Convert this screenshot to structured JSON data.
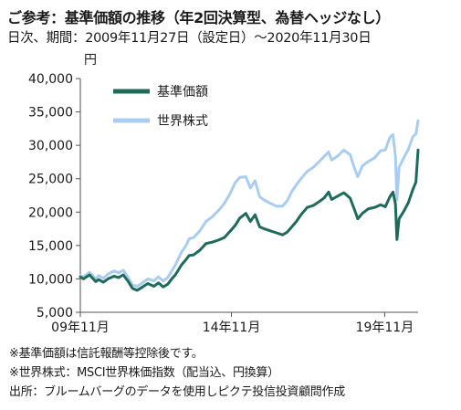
{
  "title": "ご参考：基準価額の推移（年2回決算型、為替ヘッジなし）",
  "subtitle": "日次、期間：2009年11月27日（設定日）～2020年11月30日",
  "notes": [
    "※基準価額は信託報酬等控除後です。",
    "※世界株式：MSCI世界株価指数（配当込、円換算）",
    "出所：ブルームバーグのデータを使用しピクテ投信投資顧問作成"
  ],
  "chart_data": {
    "type": "line",
    "yunit": "円",
    "ylim": [
      5000,
      40000
    ],
    "yticks": [
      "5,000",
      "10,000",
      "15,000",
      "20,000",
      "25,000",
      "30,000",
      "35,000",
      "40,000"
    ],
    "xlim": [
      2009.9,
      2020.92
    ],
    "xticks": [
      {
        "x": 2009.83,
        "label": "09年11月"
      },
      {
        "x": 2014.83,
        "label": "14年11月"
      },
      {
        "x": 2019.83,
        "label": "19年11月"
      }
    ],
    "grid": false,
    "legend": "top-left",
    "series": [
      {
        "name": "基準価額",
        "color": "#1e6b5c",
        "x": [
          2009.9,
          2010.0,
          2010.2,
          2010.4,
          2010.5,
          2010.65,
          2010.8,
          2011.0,
          2011.15,
          2011.3,
          2011.45,
          2011.6,
          2011.75,
          2011.9,
          2012.1,
          2012.3,
          2012.45,
          2012.6,
          2012.75,
          2012.9,
          2013.0,
          2013.2,
          2013.35,
          2013.45,
          2013.6,
          2013.8,
          2014.0,
          2014.2,
          2014.4,
          2014.6,
          2014.8,
          2014.95,
          2015.1,
          2015.3,
          2015.45,
          2015.6,
          2015.75,
          2015.9,
          2016.1,
          2016.3,
          2016.5,
          2016.65,
          2016.8,
          2016.95,
          2017.1,
          2017.3,
          2017.5,
          2017.7,
          2017.85,
          2018.0,
          2018.1,
          2018.3,
          2018.5,
          2018.7,
          2018.85,
          2018.95,
          2019.1,
          2019.3,
          2019.5,
          2019.7,
          2019.85,
          2020.0,
          2020.1,
          2020.18,
          2020.23,
          2020.3,
          2020.45,
          2020.6,
          2020.75,
          2020.85,
          2020.92
        ],
        "values": [
          10300,
          10000,
          10600,
          9600,
          9900,
          9500,
          10000,
          10400,
          10200,
          10600,
          9700,
          8600,
          8300,
          8700,
          9300,
          8900,
          9400,
          8800,
          9200,
          10100,
          10600,
          12100,
          12900,
          13500,
          13600,
          14300,
          15300,
          15500,
          15800,
          16200,
          17200,
          18000,
          19100,
          19800,
          18600,
          19600,
          17800,
          17500,
          17200,
          16900,
          16600,
          17000,
          17800,
          18600,
          19600,
          20700,
          21000,
          21600,
          22100,
          23000,
          21900,
          22400,
          22900,
          22100,
          20300,
          19000,
          19800,
          20500,
          20700,
          21100,
          20800,
          22300,
          23000,
          21200,
          15900,
          19000,
          20100,
          21400,
          23400,
          24500,
          29300
        ]
      },
      {
        "name": "世界株式",
        "color": "#a8cdf2",
        "x": [
          2009.9,
          2010.0,
          2010.2,
          2010.4,
          2010.5,
          2010.65,
          2010.8,
          2011.0,
          2011.15,
          2011.3,
          2011.45,
          2011.6,
          2011.75,
          2011.9,
          2012.1,
          2012.3,
          2012.45,
          2012.6,
          2012.75,
          2012.9,
          2013.0,
          2013.2,
          2013.35,
          2013.45,
          2013.6,
          2013.8,
          2014.0,
          2014.2,
          2014.4,
          2014.6,
          2014.8,
          2014.95,
          2015.1,
          2015.3,
          2015.45,
          2015.6,
          2015.75,
          2015.9,
          2016.1,
          2016.3,
          2016.5,
          2016.65,
          2016.8,
          2016.95,
          2017.1,
          2017.3,
          2017.5,
          2017.7,
          2017.85,
          2018.0,
          2018.1,
          2018.3,
          2018.5,
          2018.7,
          2018.85,
          2018.95,
          2019.1,
          2019.3,
          2019.5,
          2019.7,
          2019.85,
          2020.0,
          2020.1,
          2020.18,
          2020.23,
          2020.3,
          2020.45,
          2020.6,
          2020.75,
          2020.85,
          2020.92
        ],
        "values": [
          10500,
          10300,
          11000,
          10000,
          10500,
          10100,
          10700,
          11200,
          10900,
          11300,
          10300,
          9100,
          8900,
          9300,
          10000,
          9700,
          10300,
          9700,
          10200,
          11300,
          12100,
          14000,
          15000,
          16000,
          16200,
          17200,
          18600,
          19300,
          20200,
          21300,
          22900,
          24400,
          25200,
          25300,
          23600,
          24700,
          22300,
          21800,
          21300,
          20900,
          20900,
          21700,
          23100,
          24100,
          25000,
          26100,
          26700,
          27600,
          28300,
          29000,
          27800,
          28400,
          29300,
          28600,
          26500,
          25300,
          26900,
          27600,
          28100,
          29200,
          29300,
          31200,
          31600,
          28300,
          21800,
          26700,
          28100,
          29400,
          31300,
          31700,
          33700
        ]
      }
    ]
  }
}
